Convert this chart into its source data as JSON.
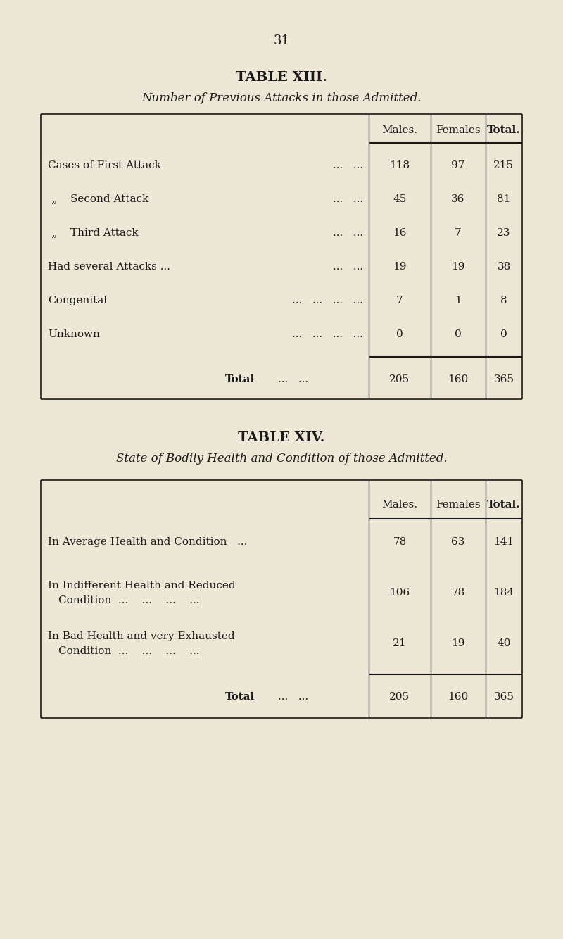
{
  "bg_color": "#ede8d5",
  "text_color": "#1a1a1a",
  "page_number": "31",
  "table13": {
    "title": "TABLE XIII.",
    "subtitle": "Number of Previous Attacks in those Admitted.",
    "rows": [
      {
        "label": "Cases of First Attack",
        "prefix": "",
        "dots": "...   ...",
        "males": "118",
        "females": "97",
        "total": "215"
      },
      {
        "label": "Second Attack",
        "prefix": "„",
        "dots": "...   ...",
        "males": "45",
        "females": "36",
        "total": "81"
      },
      {
        "label": "Third Attack",
        "prefix": "„",
        "dots": "...   ...",
        "males": "16",
        "females": "7",
        "total": "23"
      },
      {
        "label": "Had several Attacks ...",
        "prefix": "",
        "dots": "...   ...",
        "males": "19",
        "females": "19",
        "total": "38"
      },
      {
        "label": "Congenital",
        "prefix": "",
        "dots": "...   ...   ...   ...",
        "males": "7",
        "females": "1",
        "total": "8"
      },
      {
        "label": "Unknown",
        "prefix": "",
        "dots": "...   ...   ...   ...",
        "males": "0",
        "females": "0",
        "total": "0"
      }
    ],
    "total": {
      "males": "205",
      "females": "160",
      "total": "365"
    }
  },
  "table14": {
    "title": "TABLE XIV.",
    "subtitle": "State of Bodily Health and Condition of those Admitted.",
    "rows": [
      {
        "line1": "In Average Health and Condition   ...",
        "line2": null,
        "males": "78",
        "females": "63",
        "total": "141"
      },
      {
        "line1": "In Indifferent Health and Reduced",
        "line2": "Condition  ...    ...    ...    ...",
        "males": "106",
        "females": "78",
        "total": "184"
      },
      {
        "line1": "In Bad Health and very Exhausted",
        "line2": "Condition  ...    ...    ...    ...",
        "males": "21",
        "females": "19",
        "total": "40"
      }
    ],
    "total": {
      "males": "205",
      "females": "160",
      "total": "365"
    }
  }
}
